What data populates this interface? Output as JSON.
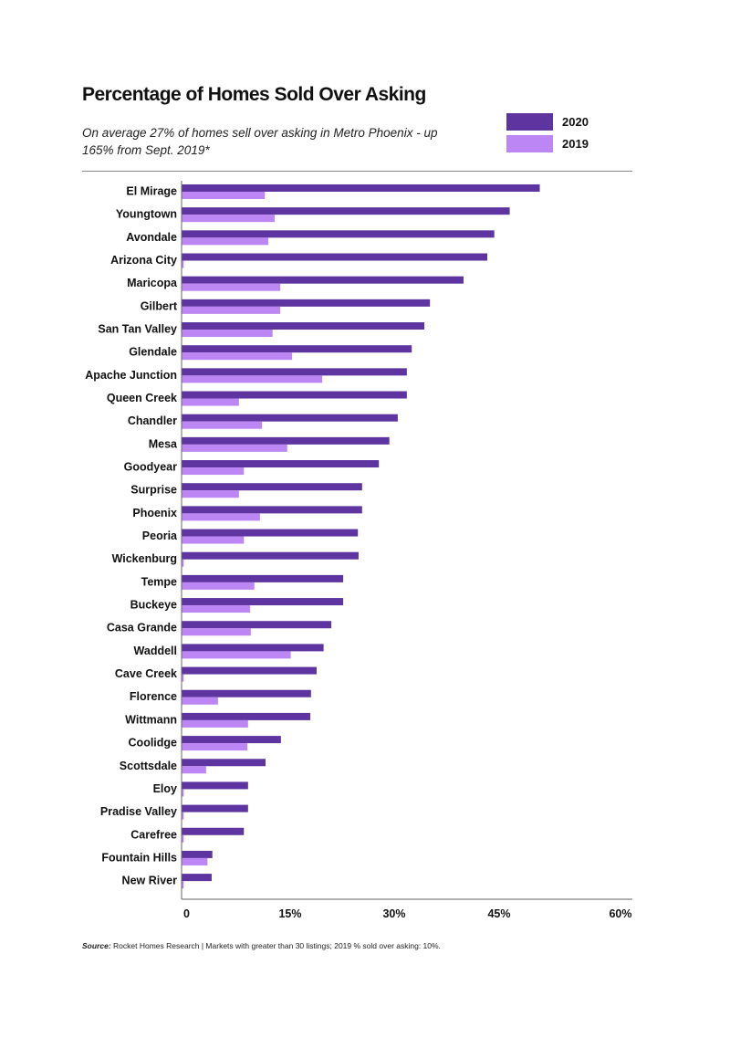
{
  "chart_data": {
    "type": "bar",
    "orientation": "horizontal",
    "title": "Percentage of Homes Sold Over Asking",
    "subtitle": "On average 27% of homes sell over asking in Metro Phoenix - up 165% from Sept. 2019*",
    "categories": [
      "El Mirage",
      "Youngtown",
      "Avondale",
      "Arizona City",
      "Maricopa",
      "Gilbert",
      "San Tan Valley",
      "Glendale",
      "Apache Junction",
      "Queen Creek",
      "Chandler",
      "Mesa",
      "Goodyear",
      "Surprise",
      "Phoenix",
      "Peoria",
      "Wickenburg",
      "Tempe",
      "Buckeye",
      "Casa Grande",
      "Waddell",
      "Cave Creek",
      "Florence",
      "Wittmann",
      "Coolidge",
      "Scottsdale",
      "Eloy",
      "Pradise Valley",
      "Carefree",
      "Fountain Hills",
      "New River"
    ],
    "series": [
      {
        "name": "2020",
        "color": "#5e35a0",
        "values": [
          51.2,
          46.9,
          44.7,
          43.7,
          40.3,
          35.5,
          34.7,
          32.9,
          32.2,
          32.2,
          30.9,
          29.7,
          28.2,
          25.8,
          25.8,
          25.2,
          25.3,
          23.1,
          23.1,
          21.4,
          20.3,
          19.3,
          18.5,
          18.4,
          14.2,
          12.0,
          9.5,
          9.5,
          8.9,
          4.4,
          4.3
        ]
      },
      {
        "name": "2019",
        "color": "#bd86f5",
        "values": [
          11.9,
          13.3,
          12.4,
          0.3,
          14.1,
          14.1,
          13.0,
          15.8,
          20.1,
          8.2,
          11.5,
          15.1,
          8.9,
          8.2,
          11.2,
          8.9,
          0.3,
          10.4,
          9.8,
          9.9,
          15.6,
          0.3,
          5.2,
          9.5,
          9.4,
          3.5,
          0.3,
          0.3,
          0.3,
          3.7,
          0.3
        ]
      }
    ],
    "xlim": [
      0,
      60
    ],
    "xticks": [
      "0",
      "15%",
      "30%",
      "45%",
      "60%"
    ],
    "xtick_values": [
      0,
      15,
      30,
      45,
      60
    ],
    "legend_position": "top-right",
    "grid": false
  },
  "source": {
    "label": "Source:",
    "text": " Rocket Homes Research | Markets with greater than 30 listings; 2019 % sold over asking: 10%."
  }
}
